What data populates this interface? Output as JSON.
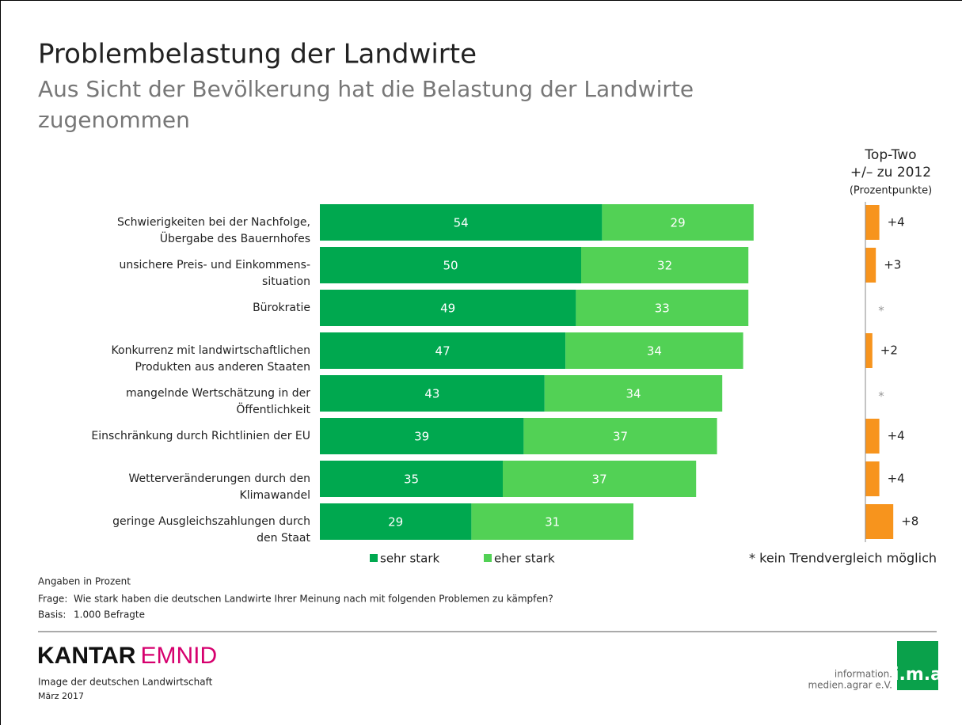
{
  "header": {
    "title": "Problembelastung der Landwirte",
    "subtitle": "Aus Sicht der Bevölkerung hat die Belastung der Landwirte\nzugenommen"
  },
  "chart_data": {
    "type": "bar",
    "orientation": "horizontal",
    "stacked": true,
    "categories": [
      "Schwierigkeiten bei der Nachfolge,\nÜbergabe des Bauernhofes",
      "unsichere Preis- und Einkommens-\nsituation",
      "Bürokratie",
      "Konkurrenz mit landwirtschaftlichen\nProdukten aus anderen Staaten",
      "mangelnde Wertschätzung in der\nÖffentlichkeit",
      "Einschränkung durch Richtlinien der EU",
      "Wetterveränderungen durch den\nKlimawandel",
      "geringe Ausgleichszahlungen durch\nden Staat"
    ],
    "series": [
      {
        "name": "sehr stark",
        "color": "#00a84f",
        "values": [
          54,
          50,
          49,
          47,
          43,
          39,
          35,
          29
        ]
      },
      {
        "name": "eher stark",
        "color": "#52d155",
        "values": [
          29,
          32,
          33,
          34,
          34,
          37,
          37,
          31
        ]
      }
    ],
    "xlim": [
      0,
      100
    ],
    "change": {
      "title": "Top-Two\n+/– zu 2012",
      "subtitle": "(Prozentpunkte)",
      "color": "#f7941d",
      "values": [
        4,
        3,
        null,
        2,
        null,
        4,
        4,
        8
      ],
      "value_labels": [
        "+4",
        "+3",
        "*",
        "+2",
        "*",
        "+4",
        "+4",
        "+8"
      ],
      "xlim": [
        0,
        10
      ],
      "note": "* kein Trendvergleich möglich"
    }
  },
  "notes": {
    "unit": "Angaben in Prozent",
    "question_label": "Frage:",
    "question": "Wie stark haben die deutschen Landwirte Ihrer Meinung nach mit folgenden Problemen zu kämpfen?",
    "basis_label": "Basis:",
    "basis": "1.000 Befragte"
  },
  "footer": {
    "brand1": "KANTAR",
    "brand2": "EMNID",
    "study": "Image der deutschen Landwirtschaft",
    "date": "März 2017",
    "ima_line1": "information.",
    "ima_line2": "medien.agrar e.V.",
    "ima_logo": "i.m.a"
  }
}
